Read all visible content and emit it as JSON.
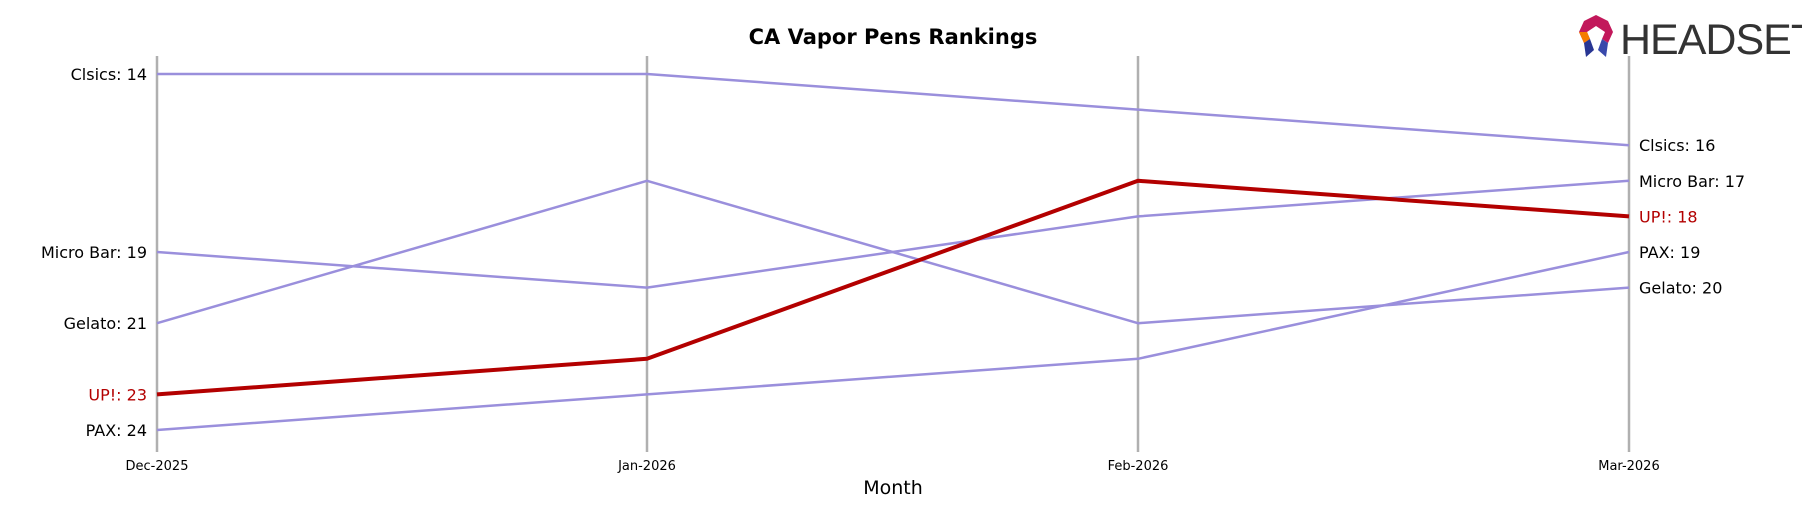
{
  "brand": {
    "name": "HEADSET"
  },
  "colors": {
    "highlight": "#b30000",
    "other": "#9a8fdc",
    "gridline": "#b0b0b0",
    "text": "#000000"
  },
  "chart_data": {
    "type": "line",
    "title": "CA Vapor Pens Rankings",
    "xlabel": "Month",
    "ylabel": "",
    "categories": [
      "Dec-2025",
      "Jan-2026",
      "Feb-2026",
      "Mar-2026"
    ],
    "y_inverted": true,
    "ylim": [
      13.5,
      24.5
    ],
    "highlight_series": "UP!",
    "series": [
      {
        "name": "Clsics",
        "values": [
          14,
          14,
          15,
          16
        ],
        "start_label": "Clsics: 14",
        "end_label": "Clsics: 16"
      },
      {
        "name": "Micro Bar",
        "values": [
          19,
          20,
          18,
          17
        ],
        "start_label": "Micro Bar: 19",
        "end_label": "Micro Bar: 17"
      },
      {
        "name": "UP!",
        "values": [
          23,
          22,
          17,
          18
        ],
        "start_label": "UP!: 23",
        "end_label": "UP!: 18"
      },
      {
        "name": "PAX",
        "values": [
          24,
          23,
          22,
          19
        ],
        "start_label": "PAX: 24",
        "end_label": "PAX: 19"
      },
      {
        "name": "Gelato",
        "values": [
          21,
          17,
          21,
          20
        ],
        "start_label": "Gelato: 21",
        "end_label": "Gelato: 20"
      }
    ]
  }
}
